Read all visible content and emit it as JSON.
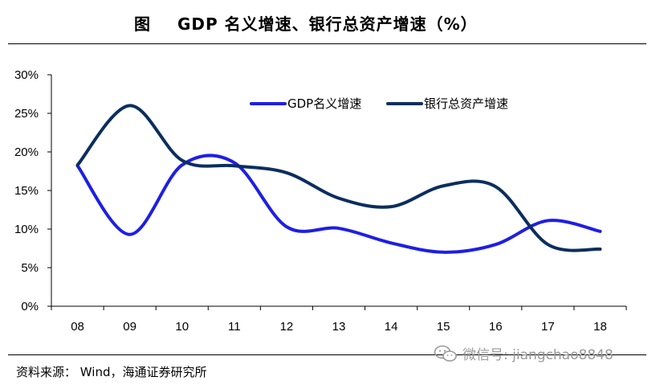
{
  "header": {
    "label": "图",
    "title": "GDP 名义增速、银行总资产增速（%）"
  },
  "chart_data": {
    "type": "line",
    "title": "GDP 名义增速、银行总资产增速（%）",
    "xlabel": "",
    "ylabel": "",
    "categories": [
      "08",
      "09",
      "10",
      "11",
      "12",
      "13",
      "14",
      "15",
      "16",
      "17",
      "18"
    ],
    "y_tick_labels": [
      "0%",
      "5%",
      "10%",
      "15%",
      "20%",
      "25%",
      "30%"
    ],
    "ylim": [
      0,
      30
    ],
    "grid": false,
    "legend": "top-right",
    "series": [
      {
        "name": "GDP名义增速",
        "color": "#1e1ee6",
        "values": [
          18.2,
          9.3,
          18.3,
          18.6,
          10.3,
          10.1,
          8.2,
          7.0,
          8.0,
          11.1,
          9.7
        ]
      },
      {
        "name": "银行总资产增速",
        "color": "#0b2e5e",
        "values": [
          18.3,
          26.0,
          18.9,
          18.2,
          17.3,
          14.0,
          12.9,
          15.6,
          15.5,
          8.0,
          7.4
        ]
      }
    ]
  },
  "footer": {
    "source": "资料来源： Wind，海通证券研究所",
    "watermark": "微信号: jiangchao8848",
    "watermark_icon": "wechat-icon"
  }
}
